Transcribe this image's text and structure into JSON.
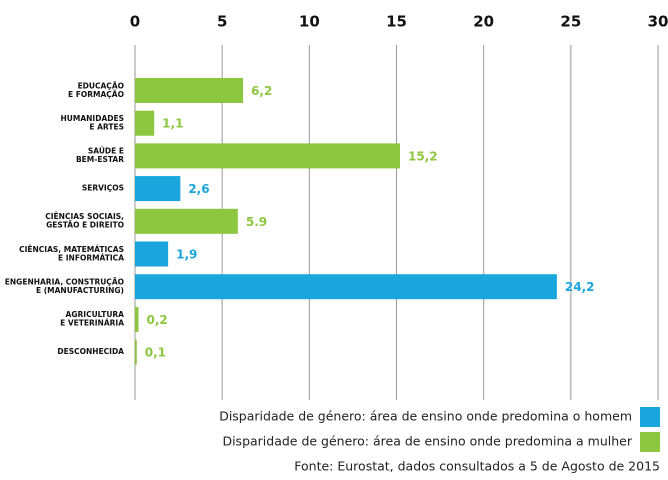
{
  "chart_data": {
    "type": "hbar",
    "categories": [
      "EDUCAÇÃO\nE FORMAÇÃO",
      "HUMANIDADES\nE ARTES",
      "SAÚDE E\nBEM-ESTAR",
      "SERVIÇOS",
      "CIÊNCIAS SOCIAIS,\nGESTÃO E DIREITO",
      "CIÊNCIAS, MATEMÁTICAS\nE INFORMÁTICA",
      "ENGENHARIA, CONSTRUÇÃO\nE (MANUFACTURING)",
      "AGRICULTURA\nE VETERINÁRIA",
      "DESCONHECIDA"
    ],
    "series": [
      {
        "name": "Disparidade de género: área de ensino onde predomina o homem",
        "color": "#1aa6dd",
        "values": [
          null,
          null,
          null,
          2.6,
          null,
          1.9,
          24.2,
          null,
          null
        ],
        "value_labels": [
          null,
          null,
          null,
          "2,6",
          null,
          "1,9",
          "24,2",
          null,
          null
        ]
      },
      {
        "name": "Disparidade de género: área de ensino onde predomina a mulher",
        "color": "#8dc63f",
        "values": [
          6.2,
          1.1,
          15.2,
          null,
          5.9,
          null,
          null,
          0.2,
          0.1
        ],
        "value_labels": [
          "6,2",
          "1,1",
          "15,2",
          null,
          "5.9",
          null,
          null,
          "0,2",
          "0,1"
        ]
      }
    ],
    "xlim": [
      0,
      30
    ],
    "xticks": [
      0,
      5,
      10,
      15,
      20,
      25,
      30
    ],
    "grid": true,
    "source": "Fonte: Eurostat, dados consultados a 5 de Agosto de 2015"
  }
}
